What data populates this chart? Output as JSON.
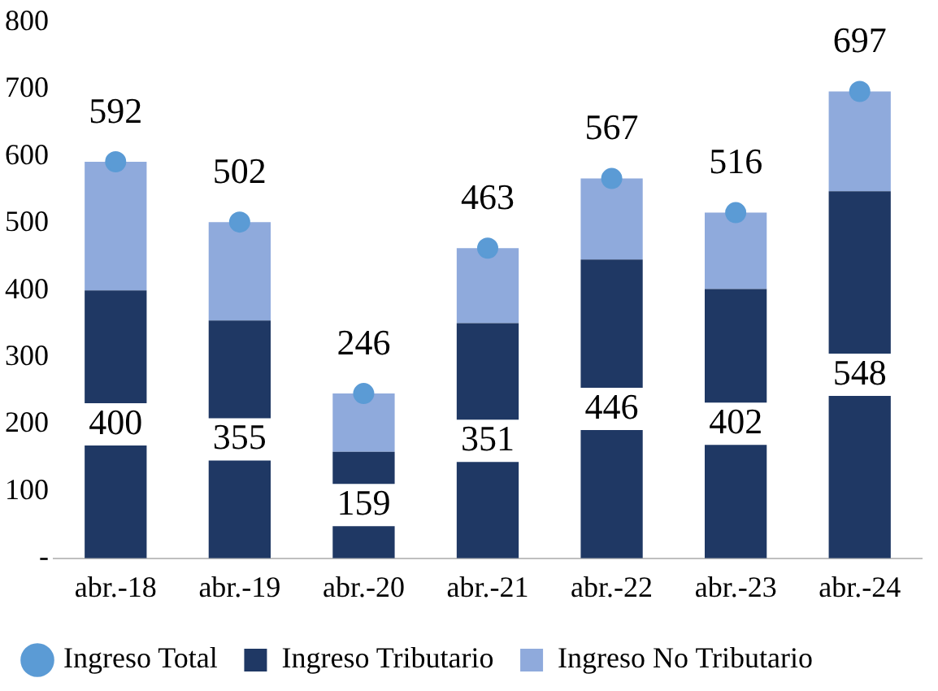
{
  "chart_data": {
    "type": "bar",
    "stacked": true,
    "categories": [
      "abr.-18",
      "abr.-19",
      "abr.-20",
      "abr.-21",
      "abr.-22",
      "abr.-23",
      "abr.-24"
    ],
    "series": [
      {
        "name": "Ingreso Tributario",
        "color": "#1f3864",
        "values": [
          400,
          355,
          159,
          351,
          446,
          402,
          548
        ],
        "value_labels": [
          "400",
          "355",
          "159",
          "351",
          "446",
          "402",
          "548"
        ]
      },
      {
        "name": "Ingreso No Tributario",
        "color": "#8faadc",
        "values": [
          192,
          147,
          87,
          112,
          121,
          114,
          149
        ]
      },
      {
        "name": "Ingreso Total",
        "type": "scatter",
        "color": "#5b9bd5",
        "x": [
          "abr.-18",
          "abr.-19",
          "abr.-20",
          "abr.-21",
          "abr.-22",
          "abr.-23",
          "abr.-24"
        ],
        "values": [
          592,
          502,
          246,
          463,
          567,
          516,
          697
        ],
        "value_labels": [
          "592",
          "502",
          "246",
          "463",
          "567",
          "516",
          "697"
        ]
      }
    ],
    "ylim": [
      0,
      800
    ],
    "yticks": [
      {
        "value": 0,
        "label": "-"
      },
      100,
      200,
      300,
      400,
      500,
      600,
      700,
      800
    ],
    "grid": false,
    "legend": "bottom",
    "marker": "circle"
  }
}
